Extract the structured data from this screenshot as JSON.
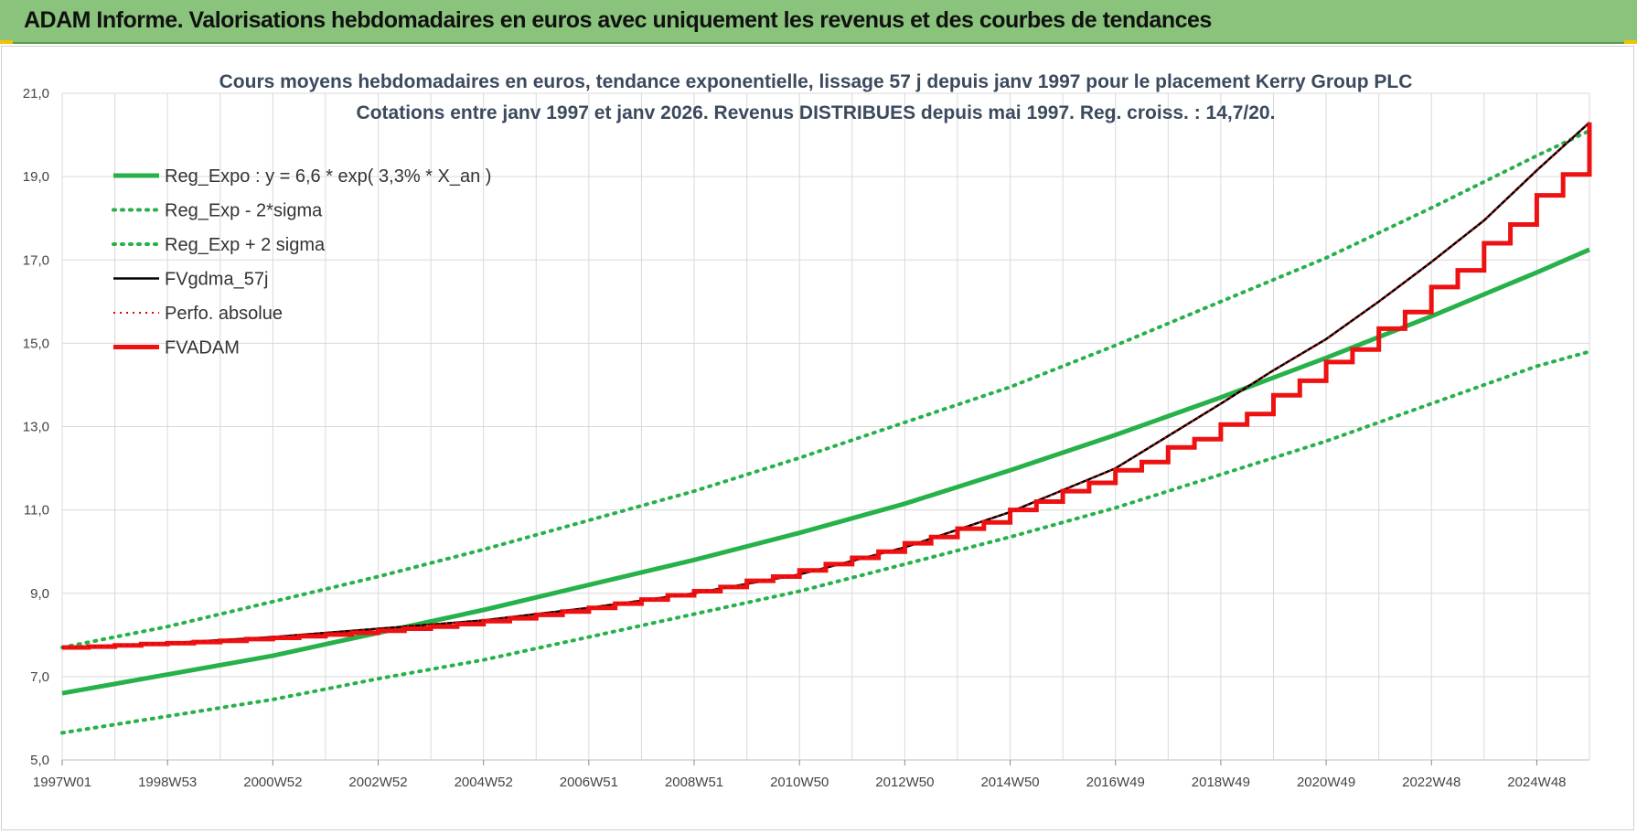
{
  "banner": {
    "title": "ADAM Informe. Valorisations hebdomadaires en euros avec uniquement les revenus et des courbes de tendances"
  },
  "colors": {
    "banner": "#8ac47c",
    "trend": "#27b14a",
    "fv57": "#000000",
    "perf": "#e00000",
    "adam": "#ee1111",
    "grid": "#d9d9d9"
  },
  "chart_data": {
    "type": "line",
    "title": "Cours moyens hebdomadaires en euros, tendance exponentielle, lissage 57 j depuis janv 1997 pour le placement Kerry Group PLC",
    "subtitle": "Cotations entre janv 1997 et janv 2026. Revenus DISTRIBUES depuis mai 1997. Reg. croiss. : 14,7/20.",
    "x_tick_labels": [
      "1997W01",
      "1998W53",
      "2000W52",
      "2002W52",
      "2004W52",
      "2006W51",
      "2008W51",
      "2010W50",
      "2012W50",
      "2014W50",
      "2016W49",
      "2018W49",
      "2020W49",
      "2022W48",
      "2024W48"
    ],
    "x_tick_years": [
      1997.0,
      1999.0,
      2001.0,
      2003.0,
      2005.0,
      2007.0,
      2009.0,
      2011.0,
      2013.0,
      2015.0,
      2017.0,
      2019.0,
      2021.0,
      2023.0,
      2025.0
    ],
    "xlim": [
      1997.0,
      2026.0
    ],
    "ylim": [
      5.0,
      21.0
    ],
    "y_ticks": [
      "5,0",
      "7,0",
      "9,0",
      "11,0",
      "13,0",
      "15,0",
      "17,0",
      "19,0",
      "21,0"
    ],
    "grid": true,
    "legend_position": "top-left",
    "series": [
      {
        "name": "Reg_Expo : y = 6,6 * exp( 3,3% *  X_an )",
        "style": "solid-green",
        "x": [
          1997,
          1999,
          2001,
          2003,
          2005,
          2007,
          2009,
          2011,
          2013,
          2015,
          2017,
          2019,
          2021,
          2023,
          2025,
          2026
        ],
        "y": [
          6.6,
          7.05,
          7.5,
          8.05,
          8.6,
          9.2,
          9.8,
          10.45,
          11.15,
          11.95,
          12.8,
          13.7,
          14.65,
          15.65,
          16.7,
          17.25
        ]
      },
      {
        "name": "Reg_Exp - 2*sigma",
        "style": "dotted-green",
        "x": [
          1997,
          1999,
          2001,
          2003,
          2005,
          2007,
          2009,
          2011,
          2013,
          2015,
          2017,
          2019,
          2021,
          2023,
          2025,
          2026
        ],
        "y": [
          5.65,
          6.05,
          6.45,
          6.95,
          7.4,
          7.95,
          8.5,
          9.05,
          9.7,
          10.35,
          11.05,
          11.85,
          12.65,
          13.55,
          14.45,
          14.8
        ]
      },
      {
        "name": "Reg_Exp + 2 sigma",
        "style": "dotted-green",
        "x": [
          1997,
          1999,
          2001,
          2003,
          2005,
          2007,
          2009,
          2011,
          2013,
          2015,
          2017,
          2019,
          2021,
          2023,
          2025,
          2026
        ],
        "y": [
          7.7,
          8.2,
          8.8,
          9.4,
          10.05,
          10.75,
          11.45,
          12.25,
          13.1,
          13.95,
          14.95,
          16.0,
          17.05,
          18.25,
          19.5,
          20.1
        ]
      },
      {
        "name": "FVgdma_57j",
        "style": "solid-black",
        "x": [
          1997,
          1999,
          2001,
          2003,
          2005,
          2007,
          2009,
          2011,
          2013,
          2015,
          2017,
          2019,
          2020,
          2021,
          2022,
          2023,
          2024,
          2025,
          2026
        ],
        "y": [
          7.7,
          7.8,
          7.95,
          8.15,
          8.35,
          8.65,
          9.0,
          9.45,
          10.1,
          10.95,
          12.0,
          13.55,
          14.35,
          15.1,
          16.0,
          16.95,
          17.95,
          19.15,
          20.3
        ]
      },
      {
        "name": "Perfo. absolue",
        "style": "dotted-red",
        "x": [
          1997,
          1999,
          2001,
          2003,
          2005,
          2007,
          2009,
          2011,
          2013,
          2015,
          2017,
          2019,
          2020,
          2021,
          2022,
          2023,
          2024,
          2025,
          2026
        ],
        "y": [
          7.7,
          7.8,
          7.95,
          8.15,
          8.35,
          8.65,
          9.0,
          9.45,
          10.1,
          10.95,
          12.0,
          13.55,
          14.35,
          15.1,
          16.0,
          16.95,
          17.95,
          19.15,
          20.3
        ]
      },
      {
        "name": "FVADAM",
        "style": "step-red",
        "step_x": [
          1997.0,
          1997.5,
          1998.0,
          1998.5,
          1999.0,
          1999.5,
          2000.0,
          2000.5,
          2001.0,
          2001.5,
          2002.0,
          2002.5,
          2003.0,
          2003.5,
          2004.0,
          2004.5,
          2005.0,
          2005.5,
          2006.0,
          2006.5,
          2007.0,
          2007.5,
          2008.0,
          2008.5,
          2009.0,
          2009.5,
          2010.0,
          2010.5,
          2011.0,
          2011.5,
          2012.0,
          2012.5,
          2013.0,
          2013.5,
          2014.0,
          2014.5,
          2015.0,
          2015.5,
          2016.0,
          2016.5,
          2017.0,
          2017.5,
          2018.0,
          2018.5,
          2019.0,
          2019.5,
          2020.0,
          2020.5,
          2021.0,
          2021.5,
          2022.0,
          2022.5,
          2023.0,
          2023.5,
          2024.0,
          2024.5,
          2025.0,
          2025.5
        ],
        "step_y": [
          7.7,
          7.72,
          7.75,
          7.78,
          7.8,
          7.83,
          7.86,
          7.9,
          7.93,
          7.97,
          8.01,
          8.05,
          8.1,
          8.15,
          8.2,
          8.26,
          8.33,
          8.4,
          8.48,
          8.56,
          8.65,
          8.75,
          8.85,
          8.95,
          9.05,
          9.15,
          9.3,
          9.4,
          9.55,
          9.7,
          9.85,
          10.0,
          10.2,
          10.35,
          10.55,
          10.7,
          11.0,
          11.2,
          11.45,
          11.65,
          11.95,
          12.15,
          12.5,
          12.7,
          13.05,
          13.3,
          13.75,
          14.1,
          14.55,
          14.85,
          15.35,
          15.75,
          16.35,
          16.75,
          17.4,
          17.85,
          18.55,
          19.05
        ],
        "final_y": 20.3,
        "end_x": 2026.0
      }
    ]
  }
}
